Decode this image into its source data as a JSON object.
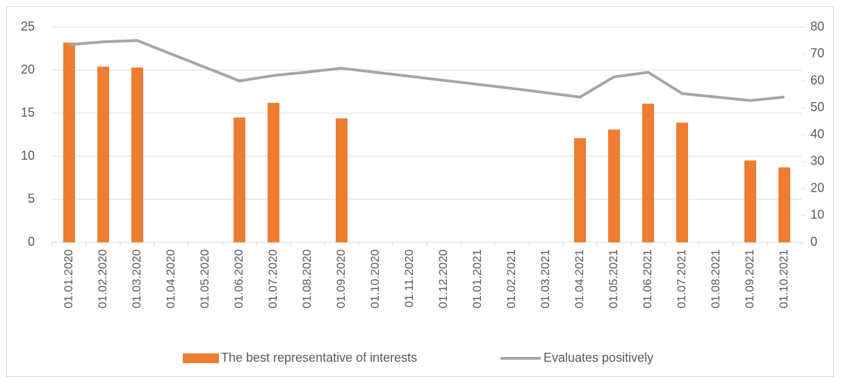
{
  "chart_data": {
    "type": "bar_line",
    "categories": [
      "01.01.2020",
      "01.02.2020",
      "01.03.2020",
      "01.04.2020",
      "01.05.2020",
      "01.06.2020",
      "01.07.2020",
      "01.08.2020",
      "01.09.2020",
      "01.10.2020",
      "01.11.2020",
      "01.12.2020",
      "01.01.2021",
      "01.02.2021",
      "01.03.2021",
      "01.04.2021",
      "01.05.2021",
      "01.06.2021",
      "01.07.2021",
      "01.08.2021",
      "01.09.2021",
      "01.10.2021"
    ],
    "series": [
      {
        "name": "The best representative of interests",
        "type": "bar",
        "color": "#ed7d31",
        "values": [
          23.2,
          20.4,
          20.3,
          null,
          null,
          14.5,
          16.2,
          null,
          14.4,
          null,
          null,
          null,
          null,
          null,
          null,
          12.1,
          13.1,
          16.1,
          13.9,
          null,
          9.5,
          8.7
        ]
      },
      {
        "name": "Evaluates positively",
        "type": "line",
        "color": "#a5a5a5",
        "axis": "y2",
        "values": [
          73.5,
          74.5,
          75,
          70,
          65,
          60,
          62,
          63.3,
          64.7,
          63.2,
          61.7,
          60.2,
          58.7,
          57.2,
          55.6,
          54,
          61.5,
          63.2,
          55.3,
          54,
          52.7,
          54
        ]
      }
    ],
    "ylim": [
      0,
      25
    ],
    "yticks": [
      0,
      5,
      10,
      15,
      20,
      25
    ],
    "y2lim": [
      0,
      80
    ],
    "y2ticks": [
      0,
      10,
      20,
      30,
      40,
      50,
      60,
      70,
      80
    ],
    "grid": true,
    "legend": "bottom"
  }
}
